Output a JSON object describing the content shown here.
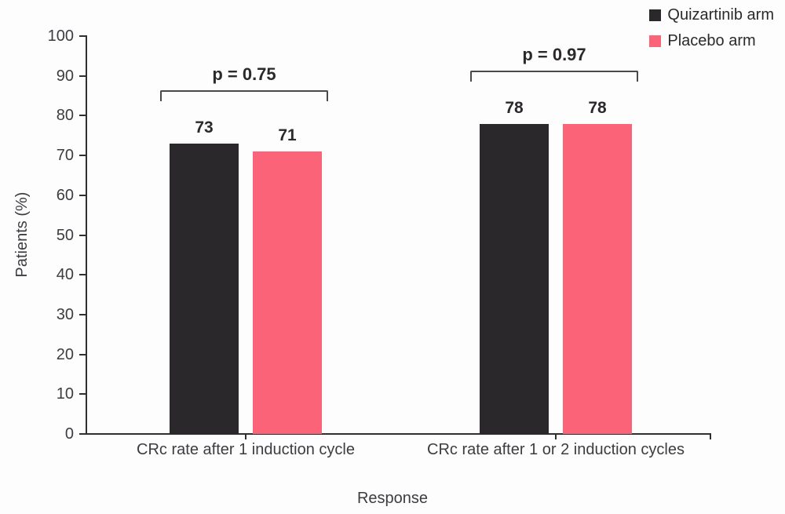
{
  "chart_data": {
    "type": "bar",
    "title": "",
    "categories": [
      "CRc rate after 1 induction cycle",
      "CRc rate after 1 or 2 induction cycles"
    ],
    "series": [
      {
        "name": "Quizartinib arm",
        "color": "#2b282b",
        "values": [
          73,
          78
        ]
      },
      {
        "name": "Placebo arm",
        "color": "#fb6478",
        "values": [
          71,
          78
        ]
      }
    ],
    "annotations": [
      {
        "group": 0,
        "label": "p = 0.75"
      },
      {
        "group": 1,
        "label": "p = 0.97"
      }
    ],
    "bar_value_labels": [
      [
        "73",
        "78"
      ],
      [
        "71",
        "78"
      ]
    ],
    "xlabel": "Response",
    "ylabel": "Patients (%)",
    "ylim": [
      0,
      100
    ],
    "ytick_step": 10,
    "ytick_labels": [
      "0",
      "10",
      "20",
      "30",
      "40",
      "50",
      "60",
      "70",
      "80",
      "90",
      "100"
    ],
    "grid": false,
    "legend_position": "top-right",
    "axis_color": "#2f2f2f",
    "text_color": "#3c3c41"
  }
}
